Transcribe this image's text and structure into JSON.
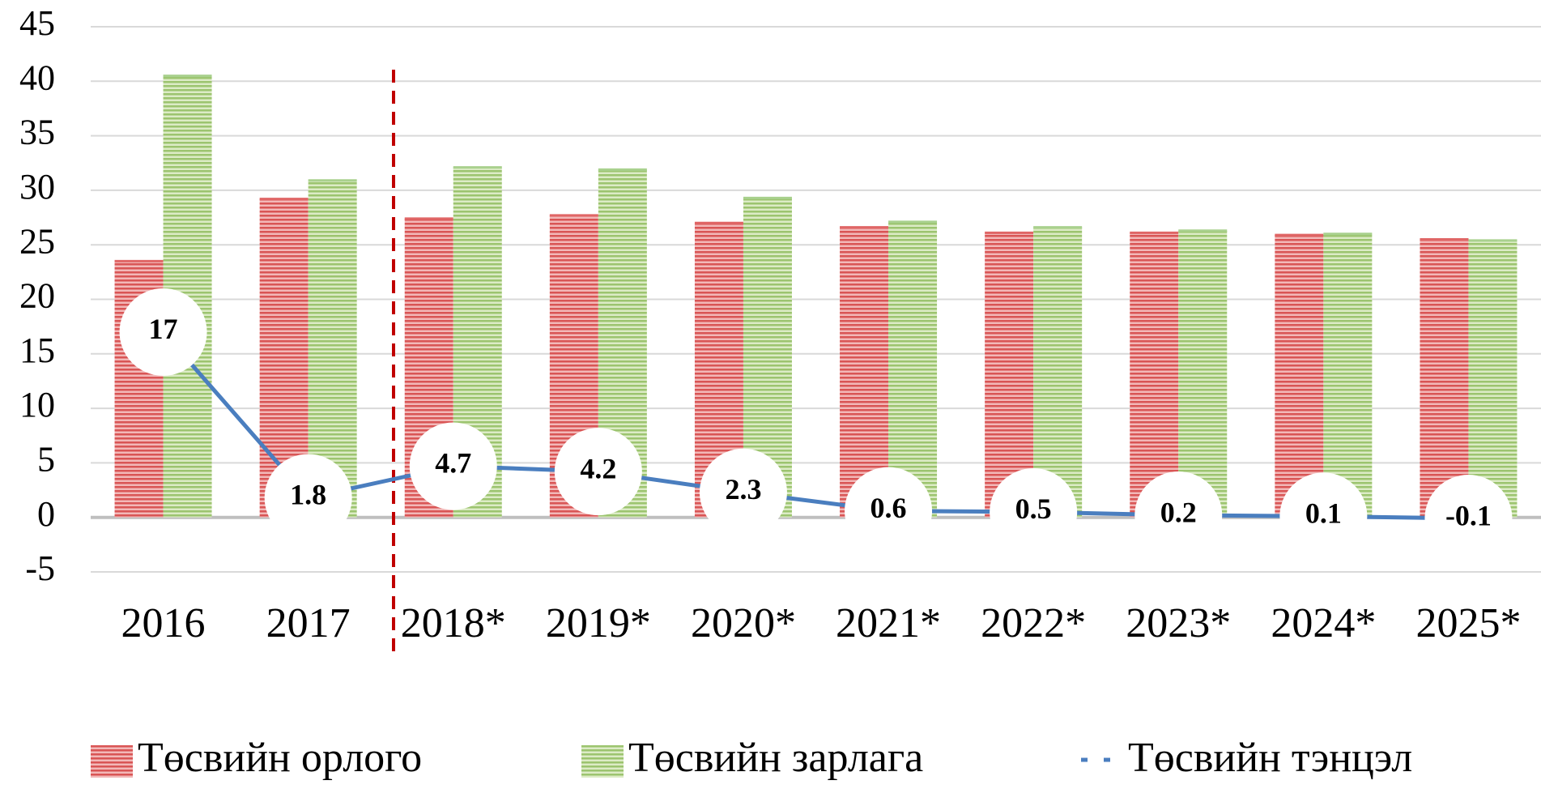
{
  "chart_data": {
    "type": "bar-line",
    "categories": [
      "2016",
      "2017",
      "2018*",
      "2019*",
      "2020*",
      "2021*",
      "2022*",
      "2023*",
      "2024*",
      "2025*"
    ],
    "series": [
      {
        "name": "Төсвийн орлого",
        "type": "bar",
        "color": "#e06666",
        "values": [
          23.5,
          29.2,
          27.4,
          27.7,
          27.0,
          26.6,
          26.1,
          26.1,
          25.9,
          25.5
        ]
      },
      {
        "name": "Төсвийн зарлага",
        "type": "bar",
        "color": "#a9d18e",
        "values": [
          40.5,
          30.9,
          32.1,
          31.9,
          29.3,
          27.1,
          26.6,
          26.3,
          26.0,
          25.4
        ]
      },
      {
        "name": "Төсвийн тэнцэл",
        "type": "line",
        "color": "#4a7ebf",
        "values": [
          17,
          1.8,
          4.7,
          4.2,
          2.3,
          0.6,
          0.5,
          0.2,
          0.1,
          -0.1
        ]
      }
    ],
    "ylim": [
      -5,
      45
    ],
    "yticks": [
      -5,
      0,
      5,
      10,
      15,
      20,
      25,
      30,
      35,
      40,
      45
    ],
    "grid": true,
    "legend": "bottom"
  }
}
